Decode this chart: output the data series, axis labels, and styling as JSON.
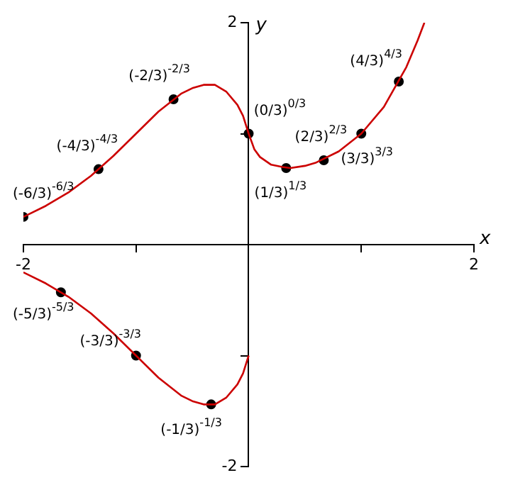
{
  "chart_data": {
    "type": "line",
    "xlabel": "x",
    "ylabel": "y",
    "xlim": [
      -2,
      2
    ],
    "ylim": [
      -2,
      2
    ],
    "xticks": [
      -2,
      {
        "value": -1,
        "label": null
      },
      {
        "value": 1,
        "label": null
      },
      2
    ],
    "yticks": [
      -2,
      {
        "value": -1,
        "label": null
      },
      {
        "value": 1,
        "label": null
      },
      2
    ],
    "grid": false,
    "legend": false,
    "series": [
      {
        "color": "#cc0000",
        "marker": "none",
        "x": [
          -2,
          -1.8,
          -1.6,
          -1.4,
          -1.2,
          -1,
          -0.8,
          -0.6,
          -0.5,
          -0.4,
          -0.3,
          -0.2,
          -0.1,
          -0.05,
          0,
          0.05,
          0.1,
          0.2,
          0.3,
          0.37,
          0.5,
          0.6,
          0.8,
          1,
          1.2,
          1.4,
          1.5,
          1.56
        ],
        "values": [
          0.25,
          0.35,
          0.47,
          0.62,
          0.8,
          1,
          1.2,
          1.36,
          1.41,
          1.44,
          1.44,
          1.38,
          1.26,
          1.16,
          1,
          0.86,
          0.79,
          0.72,
          0.7,
          0.69,
          0.71,
          0.74,
          0.84,
          1,
          1.24,
          1.6,
          1.84,
          2
        ]
      },
      {
        "color": "#cc0000",
        "marker": "none",
        "x": [
          -2,
          -1.8,
          -1.6,
          -1.4,
          -1.2,
          -1,
          -0.8,
          -0.6,
          -0.5,
          -0.4,
          -0.3,
          -0.2,
          -0.1,
          -0.05,
          0
        ],
        "values": [
          -0.25,
          -0.35,
          -0.47,
          -0.62,
          -0.8,
          -1,
          -1.2,
          -1.36,
          -1.41,
          -1.44,
          -1.44,
          -1.38,
          -1.26,
          -1.16,
          -1
        ]
      },
      {
        "type": "scatter",
        "color": "#000000",
        "marker": "circle",
        "x": [
          -2,
          -1.333,
          -0.667,
          0,
          0.333,
          0.667,
          1,
          1.333,
          -1.667,
          -1,
          -0.333
        ],
        "values": [
          0.25,
          0.68,
          1.31,
          1,
          0.69,
          0.76,
          1,
          1.47,
          -0.43,
          -1,
          -1.44
        ]
      }
    ],
    "annotations": [
      {
        "text": "(-6/3)$^{-6/3}$",
        "x": -2,
        "y": 0.25
      },
      {
        "text": "(-4/3)$^{-4/3}$",
        "x": -1.333,
        "y": 0.68
      },
      {
        "text": "(-2/3)$^{-2/3}$",
        "x": -0.667,
        "y": 1.31
      },
      {
        "text": "(0/3)$^{0/3}$",
        "x": 0,
        "y": 1
      },
      {
        "text": "(1/3)$^{1/3}$",
        "x": 0.333,
        "y": 0.69
      },
      {
        "text": "(2/3)$^{2/3}$",
        "x": 0.667,
        "y": 0.76
      },
      {
        "text": "(3/3)$^{3/3}$",
        "x": 1,
        "y": 1
      },
      {
        "text": "(4/3)$^{4/3}$",
        "x": 1.333,
        "y": 1.47
      },
      {
        "text": "(-5/3)$^{-5/3}$",
        "x": -1.667,
        "y": -0.43
      },
      {
        "text": "(-3/3)$^{-3/3}$",
        "x": -1,
        "y": -1
      },
      {
        "text": "(-1/3)$^{-1/3}$",
        "x": -0.333,
        "y": -1.44
      }
    ]
  }
}
